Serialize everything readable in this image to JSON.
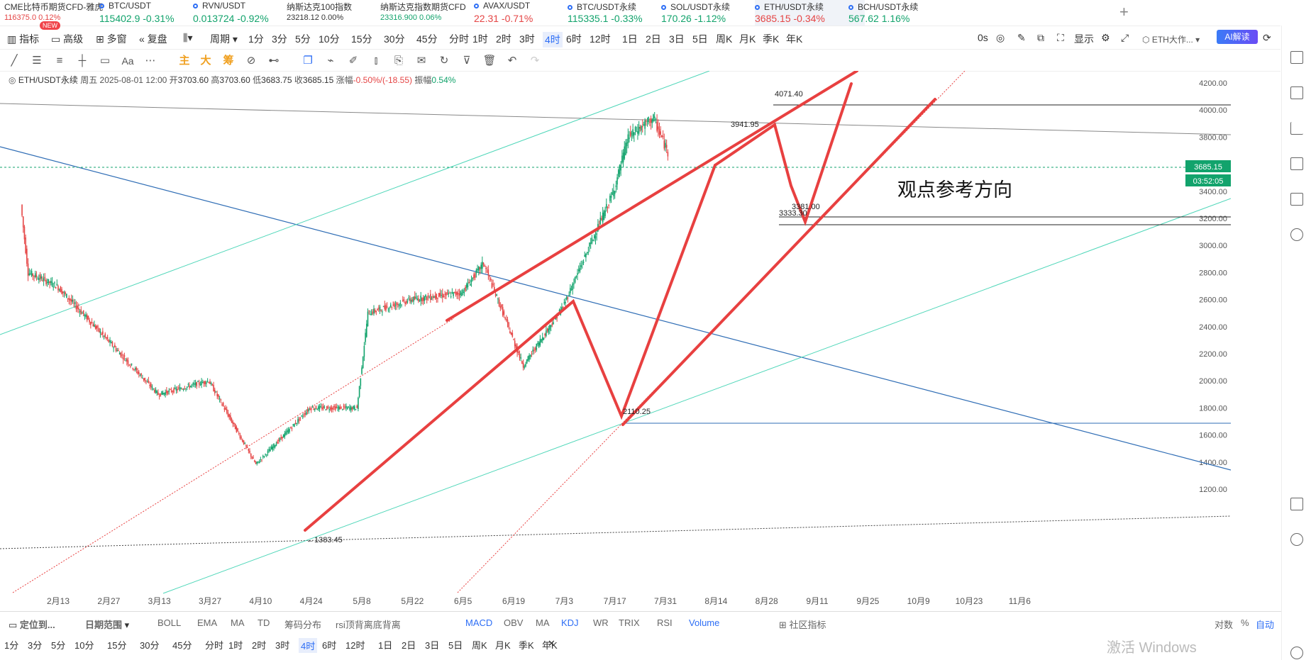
{
  "tickers": [
    {
      "name": "CME比特币期货CFD-雅虎",
      "price": "116375.0",
      "change": "0.12%",
      "small": true,
      "dir": "dn"
    },
    {
      "name": "BTC/USDT",
      "price": "115402.9",
      "change": "-0.31%",
      "dir": "up"
    },
    {
      "name": "RVN/USDT",
      "price": "0.013724",
      "change": "-0.92%",
      "dir": "up"
    },
    {
      "name": "纳斯达克100指数",
      "price": "23218.12",
      "change": "0.00%",
      "small": true
    },
    {
      "name": "纳斯达克指数期货CFD",
      "price": "23316.900",
      "change": "0.06%",
      "small": true,
      "dir": "up"
    },
    {
      "name": "AVAX/USDT",
      "price": "22.31",
      "change": "-0.71%",
      "dir": "dn"
    },
    {
      "name": "BTC/USDT永续",
      "price": "115335.1",
      "change": "-0.33%",
      "dir": "up"
    },
    {
      "name": "SOL/USDT永续",
      "price": "170.26",
      "change": "-1.12%",
      "dir": "up"
    },
    {
      "name": "ETH/USDT永续",
      "price": "3685.15",
      "change": "-0.34%",
      "dir": "dn",
      "active": true
    },
    {
      "name": "BCH/USDT永续",
      "price": "567.62",
      "change": "1.16%",
      "dir": "up"
    }
  ],
  "toolbar": {
    "indicator": "指标",
    "advanced": "高级",
    "new_badge": "NEW",
    "multi": "多窗",
    "replay": "复盘",
    "period": "周期",
    "intervals": [
      "1分",
      "3分",
      "5分",
      "10分",
      "15分",
      "30分",
      "45分",
      "分时",
      "1时",
      "2时",
      "3时",
      "4时",
      "6时",
      "12时",
      "1日",
      "2日",
      "3日",
      "5日",
      "周K",
      "月K",
      "季K",
      "年K"
    ],
    "active_interval": "4时",
    "zero_s": "0s",
    "display": "显示",
    "symbol_short": "ETH大作...",
    "ai_label": "AI解读"
  },
  "drawing_tools": {
    "main": "主",
    "big": "大",
    "chip": "筹",
    "text": "Aa"
  },
  "legend": {
    "symbol": "ETH/USDT永续",
    "weekday": "周五",
    "datetime": "2025-08-01 12:00",
    "open_label": "开",
    "open": "3703.60",
    "high_label": "高",
    "high": "3703.60",
    "low_label": "低",
    "low": "3683.75",
    "close_label": "收",
    "close": "3685.15",
    "chg_label": "涨幅",
    "chg": "-0.50%/(-18.55)",
    "amp_label": "振幅",
    "amp": "0.54%"
  },
  "chart_data": {
    "type": "candlestick",
    "symbol": "ETH/USDT永续",
    "interval": "4时",
    "y_ticks": [
      4200,
      4000,
      3800,
      3600,
      3400,
      3200,
      3000,
      2800,
      2600,
      2400,
      2200,
      2000,
      1800,
      1600,
      1400,
      1200
    ],
    "y_tick_labels": [
      "4200.00",
      "4000.00",
      "3800.00",
      "3600.00",
      "3400.00",
      "3200.00",
      "3000.00",
      "2800.00",
      "2600.00",
      "2400.00",
      "2200.00",
      "2000.00",
      "1800.00",
      "1600.00",
      "1400.00",
      "1200.00"
    ],
    "x_tick_labels": [
      "2月13",
      "2月27",
      "3月13",
      "3月27",
      "4月10",
      "4月24",
      "5月8",
      "5月22",
      "6月5",
      "6月19",
      "7月3",
      "7月17",
      "7月31",
      "8月14",
      "8月28",
      "9月11",
      "9月25",
      "10月9",
      "10月23",
      "11月6"
    ],
    "price_anchors": [
      {
        "date": "2月3",
        "price": 3300
      },
      {
        "date": "2月5",
        "price": 2800
      },
      {
        "date": "2月13",
        "price": 2700
      },
      {
        "date": "2月27",
        "price": 2300
      },
      {
        "date": "3月13",
        "price": 1900
      },
      {
        "date": "3月27",
        "price": 2000
      },
      {
        "date": "4月9",
        "price": 1383.45
      },
      {
        "date": "4月24",
        "price": 1800
      },
      {
        "date": "5月7",
        "price": 1800
      },
      {
        "date": "5月10",
        "price": 2500
      },
      {
        "date": "5月22",
        "price": 2600
      },
      {
        "date": "6月5",
        "price": 2650
      },
      {
        "date": "6月11",
        "price": 2870
      },
      {
        "date": "6月22",
        "price": 2110.25
      },
      {
        "date": "7月3",
        "price": 2550
      },
      {
        "date": "7月17",
        "price": 3400
      },
      {
        "date": "7月21",
        "price": 3800
      },
      {
        "date": "7月28",
        "price": 3941.95
      },
      {
        "date": "8月1",
        "price": 3685.15
      }
    ],
    "annotations": [
      "4071.40",
      "3941.95",
      "3381.00",
      "3333.30",
      "2110.25",
      "1383.45"
    ],
    "current_price": "3685.15",
    "countdown": "03:52:05",
    "overlay_text": "观点参考方向"
  },
  "bottom1": {
    "locate": "定位到...",
    "date_range": "日期范围",
    "main_inds": [
      "BOLL",
      "EMA",
      "MA",
      "TD",
      "筹码分布",
      "rsi顶背离底背离"
    ],
    "sub_inds": [
      "MACD",
      "OBV",
      "MA",
      "KDJ",
      "WR",
      "TRIX",
      "RSI",
      "Volume"
    ],
    "community": "社区指标",
    "log": "对数",
    "pct": "%",
    "auto": "自动"
  },
  "bottom2": {
    "intervals": [
      "1分",
      "3分",
      "5分",
      "10分",
      "15分",
      "30分",
      "45分",
      "分时",
      "1时",
      "2时",
      "3时",
      "4时",
      "6时",
      "12时",
      "1日",
      "2日",
      "3日",
      "5日",
      "周K",
      "月K",
      "季K",
      "年K"
    ],
    "active": "4时"
  },
  "watermark": "激活 Windows",
  "colors": {
    "up": "#12a36c",
    "down": "#e54545",
    "accent": "#2d6ef5",
    "red_line": "#e84040",
    "teal_line": "#4dd6b8",
    "blue_line": "#2f6db5"
  }
}
